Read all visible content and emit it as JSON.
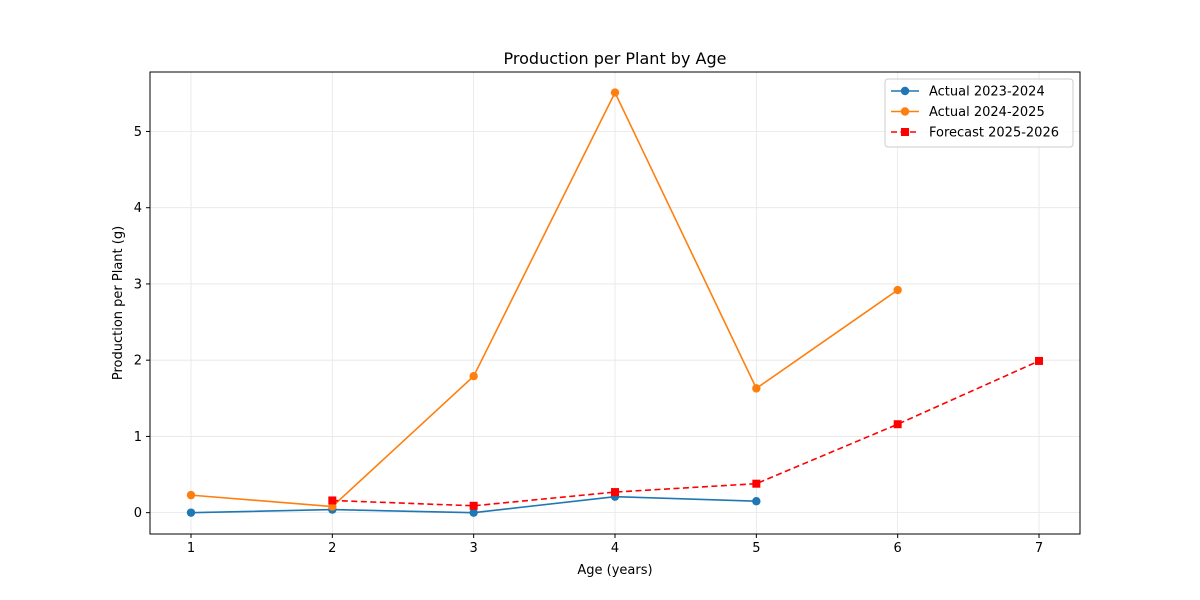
{
  "chart_data": {
    "type": "line",
    "title": "Production per Plant by Age",
    "xlabel": "Age (years)",
    "ylabel": "Production per Plant (g)",
    "xlim": [
      0.71,
      7.29
    ],
    "ylim": [
      -0.28,
      5.78
    ],
    "xticks": [
      1,
      2,
      3,
      4,
      5,
      6,
      7
    ],
    "yticks": [
      0,
      1,
      2,
      3,
      4,
      5
    ],
    "grid": true,
    "legend_position": "top-right",
    "series": [
      {
        "name": "Actual 2023-2024",
        "color": "#1f77b4",
        "linestyle": "solid",
        "marker": "circle",
        "x": [
          1,
          2,
          3,
          4,
          5
        ],
        "y": [
          0.0,
          0.04,
          0.0,
          0.21,
          0.15
        ]
      },
      {
        "name": "Actual 2024-2025",
        "color": "#ff7f0e",
        "linestyle": "solid",
        "marker": "circle",
        "x": [
          1,
          2,
          3,
          4,
          5,
          6
        ],
        "y": [
          0.23,
          0.08,
          1.79,
          5.51,
          1.63,
          2.92
        ]
      },
      {
        "name": "Forecast 2025-2026",
        "color": "#ff0000",
        "linestyle": "dashed",
        "marker": "square",
        "x": [
          2,
          3,
          4,
          5,
          6,
          7
        ],
        "y": [
          0.16,
          0.09,
          0.27,
          0.38,
          1.16,
          1.99
        ]
      }
    ]
  }
}
